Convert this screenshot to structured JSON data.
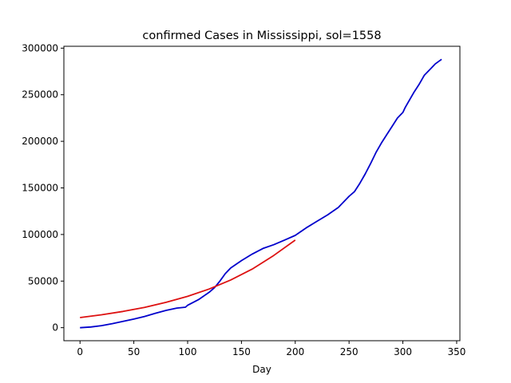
{
  "chart_data": {
    "type": "line",
    "title": "confirmed Cases in Mississippi, sol=1558",
    "xlabel": "Day",
    "ylabel": "",
    "xlim": [
      -15,
      353
    ],
    "ylim": [
      -14000,
      302000
    ],
    "xticks": [
      0,
      50,
      100,
      150,
      200,
      250,
      300,
      350
    ],
    "yticks": [
      0,
      50000,
      100000,
      150000,
      200000,
      250000,
      300000
    ],
    "grid": false,
    "legend": "none",
    "series": [
      {
        "color": "#0000cc",
        "x": [
          0,
          10,
          20,
          30,
          40,
          50,
          60,
          70,
          80,
          90,
          98,
          100,
          110,
          120,
          125,
          130,
          135,
          140,
          150,
          160,
          170,
          180,
          190,
          200,
          210,
          220,
          230,
          240,
          250,
          255,
          260,
          265,
          270,
          275,
          280,
          285,
          290,
          295,
          300,
          302,
          305,
          310,
          315,
          320,
          325,
          330,
          336
        ],
        "y": [
          0,
          700,
          2200,
          4300,
          6800,
          9200,
          12000,
          15500,
          18500,
          21000,
          22000,
          24000,
          30000,
          38000,
          43000,
          50000,
          58000,
          64000,
          72000,
          79000,
          85000,
          89000,
          94000,
          99000,
          107000,
          114000,
          121000,
          129000,
          141000,
          146000,
          155000,
          165000,
          176000,
          188000,
          198000,
          207000,
          216000,
          225000,
          231000,
          236000,
          242000,
          252000,
          261000,
          271000,
          277000,
          283000,
          288000
        ]
      },
      {
        "color": "#dd1111",
        "x": [
          0,
          20,
          40,
          60,
          80,
          100,
          120,
          140,
          160,
          180,
          200
        ],
        "y": [
          10800,
          13800,
          17400,
          21800,
          27200,
          33600,
          41500,
          51200,
          62900,
          77500,
          94000
        ]
      }
    ]
  }
}
